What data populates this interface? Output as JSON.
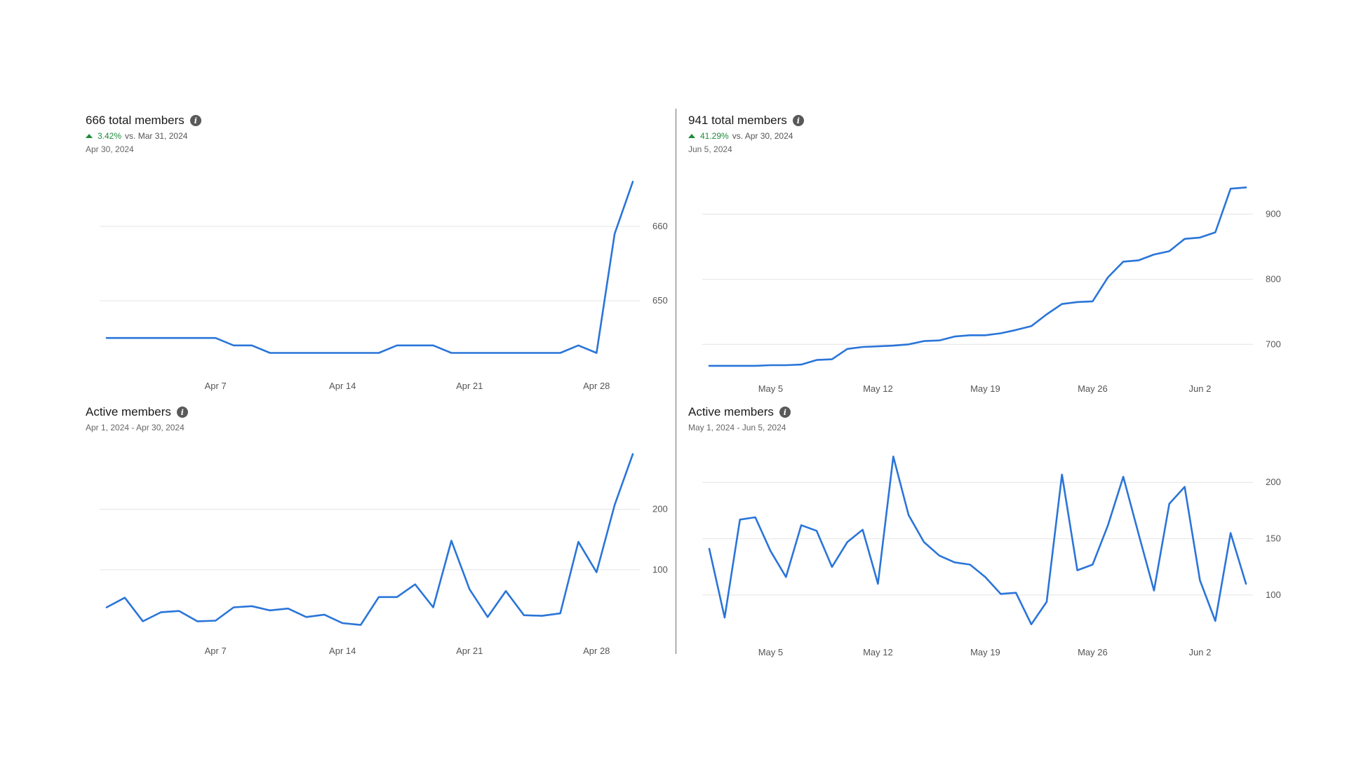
{
  "charts": [
    {
      "id": "total-left",
      "title": "666 total members",
      "delta_pct": "3.42%",
      "delta_vs": "vs. Mar 31, 2024",
      "date": "Apr 30, 2024",
      "line_color": "#2a75d9",
      "delta_color": "#1e8b3a"
    },
    {
      "id": "total-right",
      "title": "941 total members",
      "delta_pct": "41.29%",
      "delta_vs": "vs. Apr 30, 2024",
      "date": "Jun 5, 2024",
      "line_color": "#2a75d9",
      "delta_color": "#1e8b3a"
    },
    {
      "id": "active-left",
      "title": "Active members",
      "date": "Apr 1, 2024 - Apr 30, 2024",
      "line_color": "#2a75d9"
    },
    {
      "id": "active-right",
      "title": "Active members",
      "date": "May 1, 2024 - Jun 5, 2024",
      "line_color": "#2a75d9"
    }
  ],
  "chart_data": [
    {
      "type": "line",
      "title": "666 total members",
      "x": [
        "Apr 1",
        "Apr 2",
        "Apr 3",
        "Apr 4",
        "Apr 5",
        "Apr 6",
        "Apr 7",
        "Apr 8",
        "Apr 9",
        "Apr 10",
        "Apr 11",
        "Apr 12",
        "Apr 13",
        "Apr 14",
        "Apr 15",
        "Apr 16",
        "Apr 17",
        "Apr 18",
        "Apr 19",
        "Apr 20",
        "Apr 21",
        "Apr 22",
        "Apr 23",
        "Apr 24",
        "Apr 25",
        "Apr 26",
        "Apr 27",
        "Apr 28",
        "Apr 29",
        "Apr 30"
      ],
      "values": [
        645,
        645,
        645,
        645,
        645,
        645,
        645,
        644,
        644,
        643,
        643,
        643,
        643,
        643,
        643,
        643,
        644,
        644,
        644,
        643,
        643,
        643,
        643,
        643,
        643,
        643,
        644,
        643,
        659,
        666
      ],
      "x_ticks": [
        {
          "label": "Apr 7",
          "index": 6
        },
        {
          "label": "Apr 14",
          "index": 13
        },
        {
          "label": "Apr 21",
          "index": 20
        },
        {
          "label": "Apr 28",
          "index": 27
        }
      ],
      "y_ticks": [
        650,
        660
      ],
      "ylim": [
        640.5,
        668
      ],
      "grid": true,
      "y_axis_side": "right"
    },
    {
      "type": "line",
      "title": "941 total members",
      "x": [
        "May 1",
        "May 2",
        "May 3",
        "May 4",
        "May 5",
        "May 6",
        "May 7",
        "May 8",
        "May 9",
        "May 10",
        "May 11",
        "May 12",
        "May 13",
        "May 14",
        "May 15",
        "May 16",
        "May 17",
        "May 18",
        "May 19",
        "May 20",
        "May 21",
        "May 22",
        "May 23",
        "May 24",
        "May 25",
        "May 26",
        "May 27",
        "May 28",
        "May 29",
        "May 30",
        "May 31",
        "Jun 1",
        "Jun 2",
        "Jun 3",
        "Jun 4",
        "Jun 5"
      ],
      "values": [
        667,
        667,
        667,
        667,
        668,
        668,
        669,
        676,
        677,
        693,
        696,
        697,
        698,
        700,
        705,
        706,
        712,
        714,
        714,
        717,
        722,
        728,
        746,
        762,
        765,
        766,
        803,
        827,
        829,
        838,
        843,
        862,
        864,
        872,
        939,
        941
      ],
      "x_ticks": [
        {
          "label": "May 5",
          "index": 4
        },
        {
          "label": "May 12",
          "index": 11
        },
        {
          "label": "May 19",
          "index": 18
        },
        {
          "label": "May 26",
          "index": 25
        },
        {
          "label": "Jun 2",
          "index": 32
        }
      ],
      "y_ticks": [
        700,
        800,
        900
      ],
      "ylim": [
        654,
        964
      ],
      "grid": true,
      "y_axis_side": "right"
    },
    {
      "type": "line",
      "title": "Active members",
      "x": [
        "Apr 1",
        "Apr 2",
        "Apr 3",
        "Apr 4",
        "Apr 5",
        "Apr 6",
        "Apr 7",
        "Apr 8",
        "Apr 9",
        "Apr 10",
        "Apr 11",
        "Apr 12",
        "Apr 13",
        "Apr 14",
        "Apr 15",
        "Apr 16",
        "Apr 17",
        "Apr 18",
        "Apr 19",
        "Apr 20",
        "Apr 21",
        "Apr 22",
        "Apr 23",
        "Apr 24",
        "Apr 25",
        "Apr 26",
        "Apr 27",
        "Apr 28",
        "Apr 29",
        "Apr 30"
      ],
      "values": [
        38,
        54,
        15,
        30,
        32,
        15,
        16,
        38,
        40,
        33,
        36,
        22,
        26,
        12,
        9,
        55,
        55,
        76,
        38,
        148,
        68,
        22,
        65,
        25,
        24,
        28,
        146,
        96,
        207,
        291
      ],
      "x_ticks": [
        {
          "label": "Apr 7",
          "index": 6
        },
        {
          "label": "Apr 14",
          "index": 13
        },
        {
          "label": "Apr 21",
          "index": 20
        },
        {
          "label": "Apr 28",
          "index": 27
        }
      ],
      "y_ticks": [
        100,
        200
      ],
      "ylim": [
        -10,
        300
      ],
      "grid": true,
      "y_axis_side": "right"
    },
    {
      "type": "line",
      "title": "Active members",
      "x": [
        "May 1",
        "May 2",
        "May 3",
        "May 4",
        "May 5",
        "May 6",
        "May 7",
        "May 8",
        "May 9",
        "May 10",
        "May 11",
        "May 12",
        "May 13",
        "May 14",
        "May 15",
        "May 16",
        "May 17",
        "May 18",
        "May 19",
        "May 20",
        "May 21",
        "May 22",
        "May 23",
        "May 24",
        "May 25",
        "May 26",
        "May 27",
        "May 28",
        "May 29",
        "May 30",
        "May 31",
        "Jun 1",
        "Jun 2",
        "Jun 3",
        "Jun 4",
        "Jun 5"
      ],
      "values": [
        141,
        80,
        167,
        169,
        139,
        116,
        162,
        157,
        125,
        147,
        158,
        110,
        223,
        171,
        147,
        135,
        129,
        127,
        116,
        101,
        102,
        74,
        94,
        207,
        122,
        127,
        162,
        205,
        154,
        104,
        181,
        196,
        113,
        77,
        155,
        110
      ],
      "x_ticks": [
        {
          "label": "May 5",
          "index": 4
        },
        {
          "label": "May 12",
          "index": 11
        },
        {
          "label": "May 19",
          "index": 18
        },
        {
          "label": "May 26",
          "index": 25
        },
        {
          "label": "Jun 2",
          "index": 32
        }
      ],
      "y_ticks": [
        100,
        150,
        200
      ],
      "ylim": [
        62,
        230
      ],
      "grid": true,
      "y_axis_side": "right"
    }
  ]
}
